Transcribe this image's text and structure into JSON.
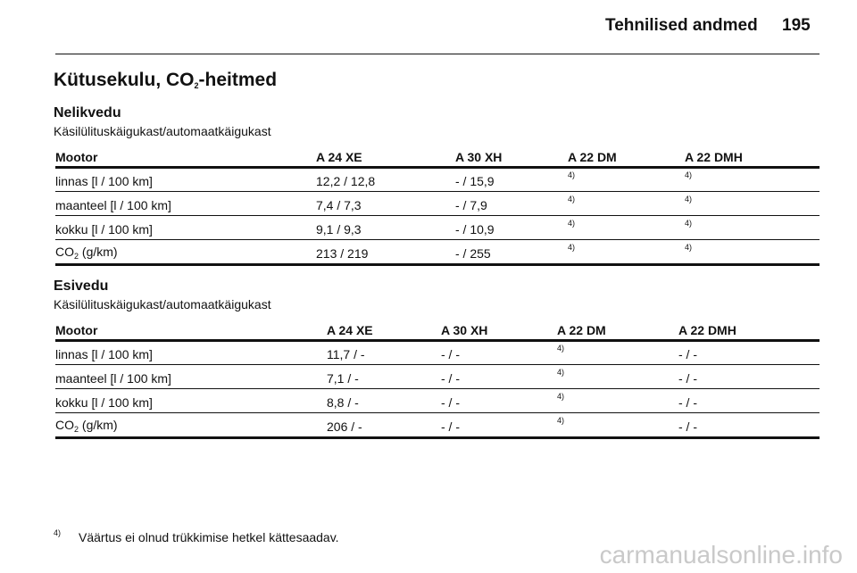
{
  "header": {
    "title": "Tehnilised andmed",
    "page": "195"
  },
  "title": [
    "Kütusekulu, CO",
    "2",
    "-heitmed"
  ],
  "sections": [
    {
      "heading": "Nelikvedu",
      "subheading": "Käsilülituskäigukast/automaatkäigukast",
      "table": {
        "columns": [
          "Mootor",
          "A 24 XE",
          "A 30 XH",
          "A 22 DM",
          "A 22 DMH"
        ],
        "rows": [
          [
            "linnas [l / 100 km]",
            "12,2 / 12,8",
            "- / 15,9",
            "4)",
            "4)"
          ],
          [
            "maanteel [l / 100 km]",
            "7,4 / 7,3",
            "- / 7,9",
            "4)",
            "4)"
          ],
          [
            "kokku [l / 100 km]",
            "9,1 / 9,3",
            "- / 10,9",
            "4)",
            "4)"
          ],
          [
            [
              "CO",
              "2",
              " (g/km)"
            ],
            "213 / 219",
            "- / 255",
            "4)",
            "4)"
          ]
        ]
      }
    },
    {
      "heading": "Esivedu",
      "subheading": "Käsilülituskäigukast/automaatkäigukast",
      "table": {
        "columns": [
          "Mootor",
          "A 24 XE",
          "A 30 XH",
          "A 22 DM",
          "A 22 DMH"
        ],
        "rows": [
          [
            "linnas [l / 100 km]",
            "11,7 / -",
            "- / -",
            "4)",
            "- / -"
          ],
          [
            "maanteel [l / 100 km]",
            "7,1 / -",
            "- / -",
            "4)",
            "- / -"
          ],
          [
            "kokku [l / 100 km]",
            "8,8 / -",
            "- / -",
            "4)",
            "- / -"
          ],
          [
            [
              "CO",
              "2",
              " (g/km)"
            ],
            "206 / -",
            "- / -",
            "4)",
            "- / -"
          ]
        ]
      }
    }
  ],
  "footnote": {
    "marker": "4)",
    "text": "Väärtus ei olnud trükkimise hetkel kättesaadav."
  },
  "watermark": "carmanualsonline.info"
}
